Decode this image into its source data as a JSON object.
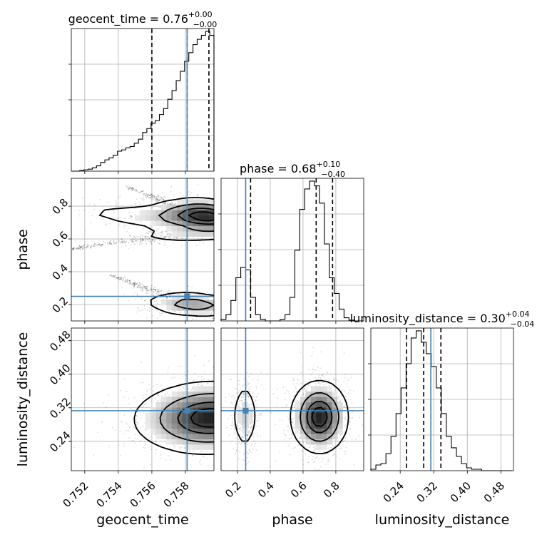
{
  "chart_data": {
    "type": "corner",
    "parameters": [
      {
        "name": "geocent_time",
        "label": "geocent_time",
        "title_text": "geocent_time = ",
        "median_text": "0.76",
        "plus_text": "+0.00",
        "minus_text": "−0.00",
        "median": 0.7581,
        "q16": 0.756,
        "q84": 0.7594,
        "truth": 0.7581,
        "range": [
          0.7512,
          0.7597
        ],
        "ticks": [
          0.752,
          0.754,
          0.756,
          0.758
        ],
        "tick_labels": [
          "0.752",
          "0.754",
          "0.756",
          "0.758"
        ],
        "hist_bins": [
          0.7512,
          0.75145,
          0.7517,
          0.75195,
          0.7522,
          0.75245,
          0.7527,
          0.75295,
          0.7532,
          0.75345,
          0.7537,
          0.75395,
          0.7542,
          0.75445,
          0.7547,
          0.75495,
          0.7552,
          0.75545,
          0.7557,
          0.75595,
          0.7562,
          0.75645,
          0.7567,
          0.75695,
          0.7572,
          0.75745,
          0.7577,
          0.75795,
          0.7582,
          0.75845,
          0.7587,
          0.75895,
          0.7592,
          0.75945,
          0.7597
        ],
        "hist_counts": [
          0,
          0,
          1,
          2,
          3,
          5,
          8,
          13,
          17,
          20,
          24,
          30,
          32,
          35,
          37,
          42,
          48,
          58,
          64,
          72,
          76,
          85,
          94,
          108,
          121,
          136,
          150,
          165,
          178,
          190,
          198,
          204,
          210,
          204
        ],
        "hist_type": "step"
      },
      {
        "name": "phase",
        "label": "phase",
        "title_text": "phase = ",
        "median_text": "0.68",
        "plus_text": "+0.10",
        "minus_text": "−0.40",
        "median": 0.68,
        "q16": 0.28,
        "q84": 0.78,
        "truth": 0.25,
        "range": [
          0.1,
          0.97
        ],
        "ticks": [
          0.2,
          0.4,
          0.6,
          0.8
        ],
        "tick_labels": [
          "0.2",
          "0.4",
          "0.6",
          "0.8"
        ],
        "hist_bins": [
          0.1,
          0.13,
          0.16,
          0.19,
          0.22,
          0.25,
          0.28,
          0.31,
          0.34,
          0.37,
          0.4,
          0.43,
          0.46,
          0.49,
          0.52,
          0.55,
          0.58,
          0.61,
          0.64,
          0.67,
          0.7,
          0.73,
          0.76,
          0.79,
          0.82,
          0.85,
          0.88,
          0.91,
          0.94,
          0.97
        ],
        "hist_counts": [
          2,
          8,
          26,
          55,
          68,
          65,
          30,
          8,
          2,
          0,
          0,
          0,
          2,
          8,
          30,
          90,
          142,
          168,
          178,
          172,
          150,
          98,
          55,
          35,
          15,
          4,
          1,
          0,
          0
        ],
        "hist_type": "step"
      },
      {
        "name": "luminosity_distance",
        "label": "luminosity_distance",
        "title_text": "luminosity_distance = ",
        "median_text": "0.30",
        "plus_text": "+0.04",
        "minus_text": "−0.04",
        "median": 0.296,
        "q16": 0.255,
        "q84": 0.337,
        "truth": 0.313,
        "range": [
          0.17,
          0.51
        ],
        "ticks": [
          0.24,
          0.32,
          0.4,
          0.48
        ],
        "tick_labels": [
          "0.24",
          "0.32",
          "0.40",
          "0.48"
        ],
        "hist_bins": [
          0.17,
          0.182,
          0.194,
          0.206,
          0.218,
          0.23,
          0.242,
          0.254,
          0.266,
          0.278,
          0.29,
          0.302,
          0.314,
          0.326,
          0.338,
          0.35,
          0.362,
          0.374,
          0.386,
          0.398,
          0.41,
          0.422,
          0.434,
          0.446,
          0.458,
          0.47,
          0.482,
          0.494,
          0.506
        ],
        "hist_counts": [
          1,
          4,
          5,
          12,
          24,
          40,
          58,
          75,
          93,
          98,
          90,
          82,
          73,
          58,
          40,
          24,
          16,
          10,
          5,
          2,
          1,
          1,
          0,
          0,
          0,
          0,
          0,
          0
        ],
        "hist_type": "step"
      }
    ],
    "panels_2d": [
      {
        "x": "geocent_time",
        "y": "phase",
        "contour_levels": [
          0.118,
          0.393,
          0.675,
          0.865
        ],
        "modes": [
          {
            "x": 0.7592,
            "y": 0.75,
            "sx": 0.0015,
            "sy": 0.05,
            "rho": -0.2,
            "w": 1.0
          },
          {
            "x": 0.7585,
            "y": 0.2,
            "sx": 0.0015,
            "sy": 0.04,
            "rho": -0.2,
            "w": 0.65
          },
          {
            "x": 0.7575,
            "y": 0.72,
            "sx": 0.0035,
            "sy": 0.05,
            "rho": -0.55,
            "w": 0.35
          },
          {
            "x": 0.7585,
            "y": 0.63,
            "sx": 0.002,
            "sy": 0.03,
            "rho": 0.3,
            "w": 0.3
          }
        ],
        "scatter_sketch": [
          {
            "x0": 0.7512,
            "y0": 0.54,
            "x1": 0.7597,
            "y1": 0.66
          },
          {
            "x0": 0.7545,
            "y0": 0.92,
            "x1": 0.7597,
            "y1": 0.7
          },
          {
            "x0": 0.7535,
            "y0": 0.38,
            "x1": 0.7597,
            "y1": 0.15
          }
        ]
      },
      {
        "x": "geocent_time",
        "y": "luminosity_distance",
        "contour_levels": [
          0.118,
          0.393,
          0.675,
          0.865
        ],
        "modes": [
          {
            "x": 0.7595,
            "y": 0.296,
            "sx": 0.0022,
            "sy": 0.042,
            "rho": 0.05,
            "w": 1.0
          }
        ],
        "scatter_sketch": []
      },
      {
        "x": "phase",
        "y": "luminosity_distance",
        "contour_levels": [
          0.118,
          0.393,
          0.675,
          0.865
        ],
        "modes": [
          {
            "x": 0.7,
            "y": 0.298,
            "sx": 0.085,
            "sy": 0.042,
            "rho": 0.0,
            "w": 1.0
          },
          {
            "x": 0.245,
            "y": 0.3,
            "sx": 0.038,
            "sy": 0.04,
            "rho": 0.0,
            "w": 0.38
          }
        ],
        "scatter_sketch": []
      }
    ],
    "quantiles": [
      0.16,
      0.5,
      0.84
    ],
    "colors": {
      "truth": "#4682b4",
      "contour": "#000000",
      "grid": "#b0b0b0",
      "quantile_line": "#000000"
    },
    "grid": true,
    "legend": "none"
  }
}
